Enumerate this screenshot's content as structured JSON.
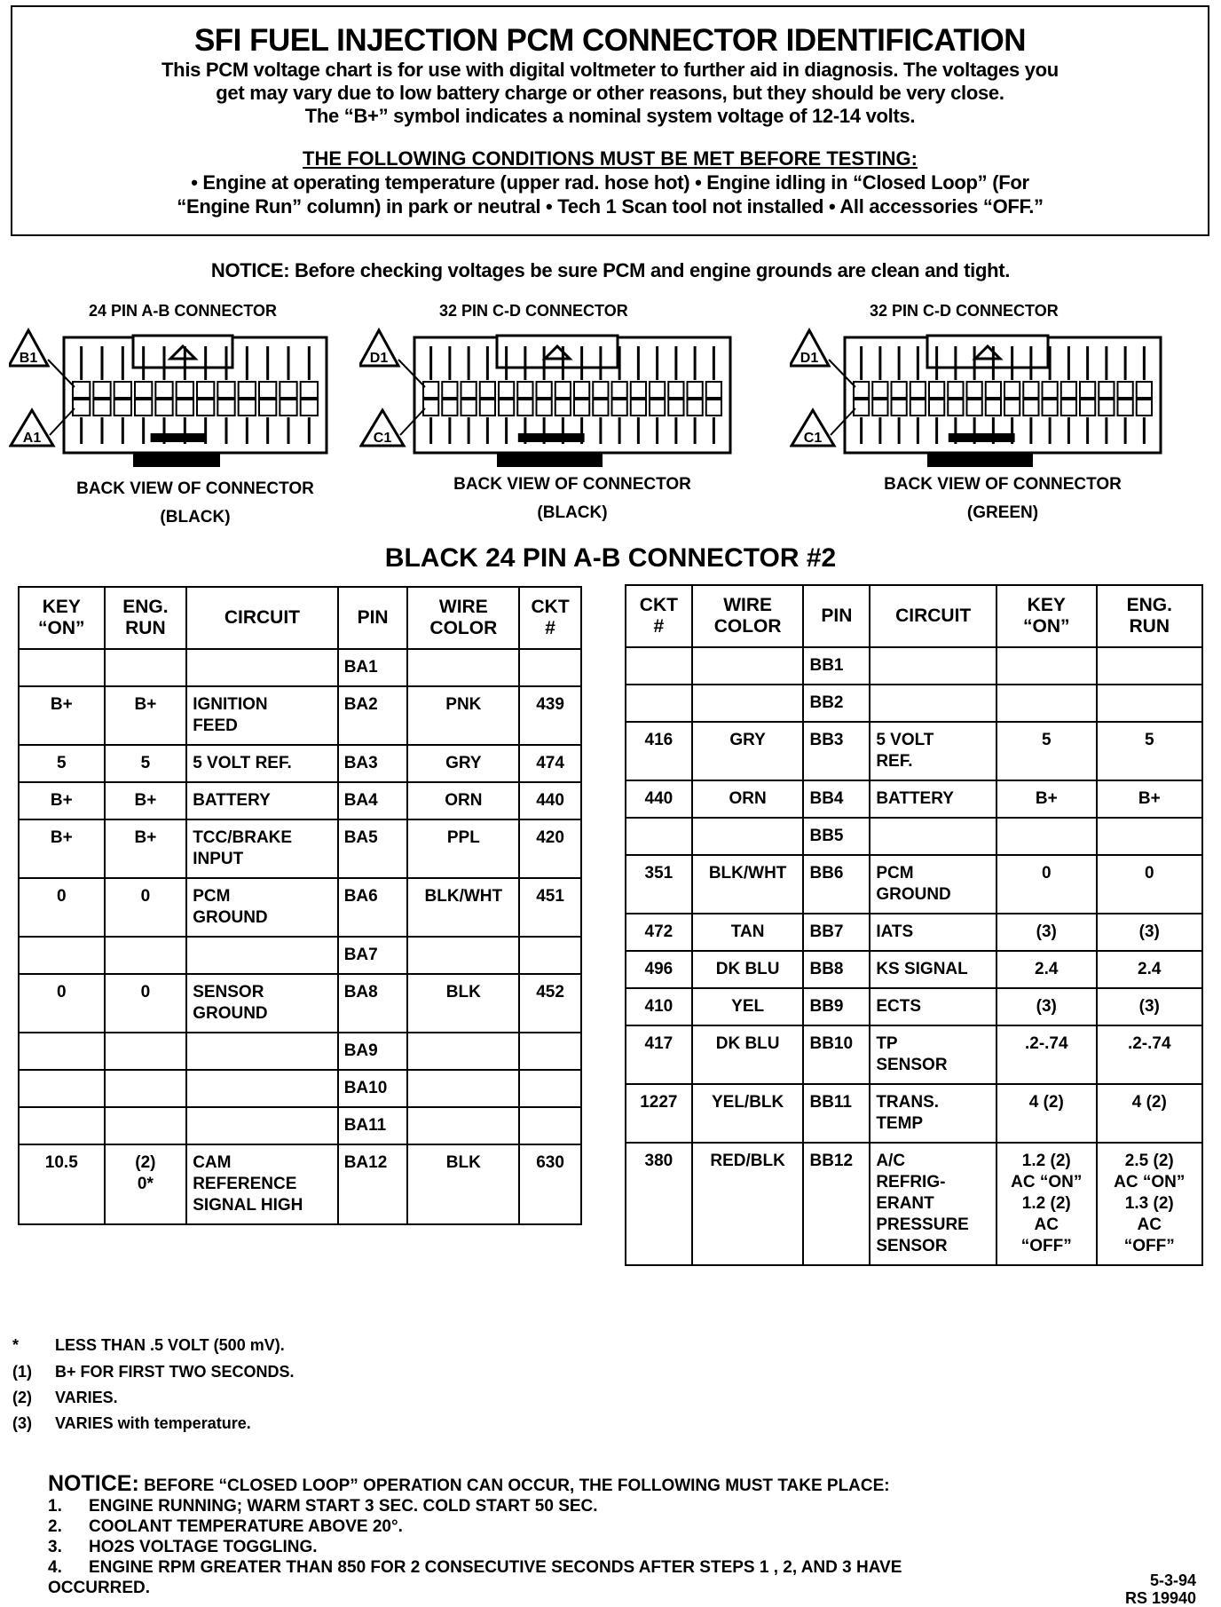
{
  "header": {
    "title": "SFI FUEL INJECTION PCM CONNECTOR IDENTIFICATION",
    "intro_lines": [
      "This PCM voltage chart is for use with digital voltmeter to further aid in diagnosis.  The voltages you",
      "get may vary due to low battery charge or other reasons, but they should be very close.",
      "The “B+” symbol indicates a nominal system voltage of 12-14 volts."
    ],
    "conditions_heading": "THE FOLLOWING CONDITIONS MUST BE MET BEFORE TESTING:",
    "conditions_lines": [
      "• Engine at operating temperature (upper rad. hose hot)  •  Engine idling in “Closed Loop” (For",
      "“Engine Run” column) in park or neutral  •  Tech 1 Scan tool not installed  •  All accessories “OFF.”"
    ]
  },
  "notice_top": "NOTICE:  Before checking voltages be sure PCM and engine grounds are clean and tight.",
  "connectors": [
    {
      "title": "24 PIN A-B  CONNECTOR",
      "pin_top": "B1",
      "pin_bottom": "A1",
      "caption": "BACK VIEW OF CONNECTOR",
      "color": "(BLACK)"
    },
    {
      "title": "32 PIN C-D  CONNECTOR",
      "pin_top": "D1",
      "pin_bottom": "C1",
      "caption": "BACK VIEW OF CONNECTOR",
      "color": "(BLACK)"
    },
    {
      "title": "32 PIN C-D  CONNECTOR",
      "pin_top": "D1",
      "pin_bottom": "C1",
      "caption": "BACK VIEW OF CONNECTOR",
      "color": "(GREEN)"
    }
  ],
  "section_title": "BLACK 24 PIN A-B CONNECTOR #2",
  "left_table": {
    "headers": [
      "KEY\n“ON”",
      "ENG.\nRUN",
      "CIRCUIT",
      "PIN",
      "WIRE\nCOLOR",
      "CKT\n#"
    ],
    "rows": [
      [
        "",
        "",
        "",
        "BA1",
        "",
        ""
      ],
      [
        "B+",
        "B+",
        "IGNITION\nFEED",
        "BA2",
        "PNK",
        "439"
      ],
      [
        "5",
        "5",
        "5 VOLT REF.",
        "BA3",
        "GRY",
        "474"
      ],
      [
        "B+",
        "B+",
        "BATTERY",
        "BA4",
        "ORN",
        "440"
      ],
      [
        "B+",
        "B+",
        "TCC/BRAKE\nINPUT",
        "BA5",
        "PPL",
        "420"
      ],
      [
        "0",
        "0",
        "PCM\nGROUND",
        "BA6",
        "BLK/WHT",
        "451"
      ],
      [
        "",
        "",
        "",
        "BA7",
        "",
        ""
      ],
      [
        "0",
        "0",
        "SENSOR\nGROUND",
        "BA8",
        "BLK",
        "452"
      ],
      [
        "",
        "",
        "",
        "BA9",
        "",
        ""
      ],
      [
        "",
        "",
        "",
        "BA10",
        "",
        ""
      ],
      [
        "",
        "",
        "",
        "BA11",
        "",
        ""
      ],
      [
        "10.5",
        "(2)\n0*",
        "CAM\nREFERENCE\nSIGNAL HIGH",
        "BA12",
        "BLK",
        "630"
      ]
    ]
  },
  "right_table": {
    "headers": [
      "CKT\n#",
      "WIRE\nCOLOR",
      "PIN",
      "CIRCUIT",
      "KEY\n“ON”",
      "ENG.\nRUN"
    ],
    "rows": [
      [
        "",
        "",
        "BB1",
        "",
        "",
        ""
      ],
      [
        "",
        "",
        "BB2",
        "",
        "",
        ""
      ],
      [
        "416",
        "GRY",
        "BB3",
        "5 VOLT\nREF.",
        "5",
        "5"
      ],
      [
        "440",
        "ORN",
        "BB4",
        "BATTERY",
        "B+",
        "B+"
      ],
      [
        "",
        "",
        "BB5",
        "",
        "",
        ""
      ],
      [
        "351",
        "BLK/WHT",
        "BB6",
        "PCM\nGROUND",
        "0",
        "0"
      ],
      [
        "472",
        "TAN",
        "BB7",
        "IATS",
        "(3)",
        "(3)"
      ],
      [
        "496",
        "DK BLU",
        "BB8",
        "KS SIGNAL",
        "2.4",
        "2.4"
      ],
      [
        "410",
        "YEL",
        "BB9",
        "ECTS",
        "(3)",
        "(3)"
      ],
      [
        "417",
        "DK BLU",
        "BB10",
        "TP\nSENSOR",
        ".2-.74",
        ".2-.74"
      ],
      [
        "1227",
        "YEL/BLK",
        "BB11",
        "TRANS.\nTEMP",
        "4 (2)",
        "4 (2)"
      ],
      [
        "380",
        "RED/BLK",
        "BB12",
        "A/C\nREFRIG-\nERANT\nPRESSURE\nSENSOR",
        "1.2 (2)\nAC “ON”\n1.2 (2)\nAC\n“OFF”",
        "2.5 (2)\nAC “ON”\n1.3 (2)\nAC\n“OFF”"
      ]
    ]
  },
  "footnotes": [
    {
      "mark": "*",
      "text": "LESS THAN .5 VOLT (500 mV)."
    },
    {
      "mark": "(1)",
      "text": "B+ FOR FIRST TWO SECONDS."
    },
    {
      "mark": "(2)",
      "text": "VARIES."
    },
    {
      "mark": "(3)",
      "text": "VARIES with temperature."
    }
  ],
  "notice_bottom": {
    "label": "NOTICE:",
    "text": "BEFORE “CLOSED LOOP” OPERATION CAN OCCUR, THE FOLLOWING MUST TAKE PLACE:",
    "steps": [
      {
        "n": "1.",
        "text": "ENGINE RUNNING;  WARM START 3 SEC. COLD START 50 SEC."
      },
      {
        "n": "2.",
        "text": "COOLANT TEMPERATURE ABOVE 20°."
      },
      {
        "n": "3.",
        "text": "HO2S VOLTAGE TOGGLING."
      },
      {
        "n": "4.",
        "text": "ENGINE RPM GREATER THAN 850 FOR 2 CONSECUTIVE SECONDS AFTER STEPS 1 , 2, AND 3 HAVE\nOCCURRED."
      }
    ]
  },
  "footer": {
    "date": "5-3-94",
    "code": "RS 19940"
  }
}
